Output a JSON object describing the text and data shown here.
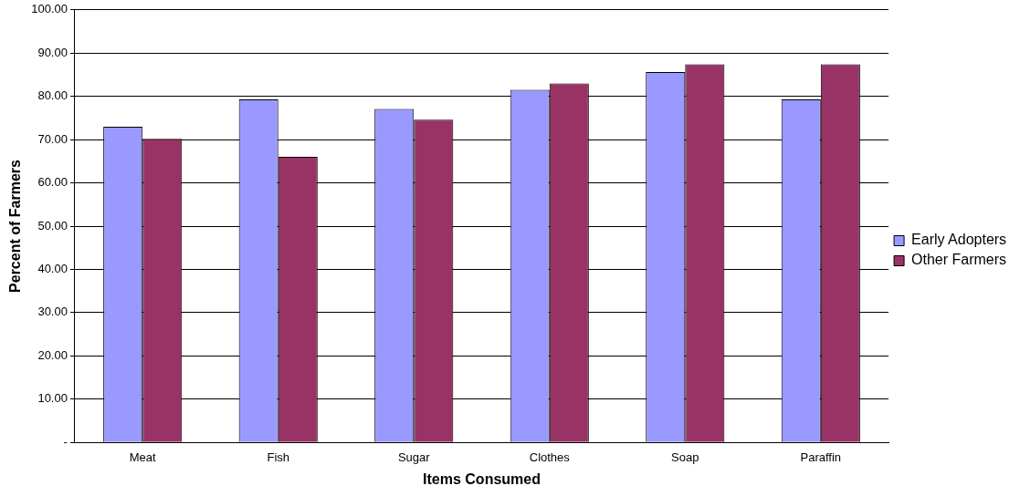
{
  "chart_data": {
    "type": "bar",
    "xlabel": "Items Consumed",
    "ylabel": "Percent of Farmers",
    "categories": [
      "Meat",
      "Fish",
      "Sugar",
      "Clothes",
      "Soap",
      "Paraffin"
    ],
    "series": [
      {
        "name": "Early Adopters",
        "color": "#9999ff",
        "values": [
          73.0,
          79.3,
          77.1,
          81.5,
          85.6,
          79.3
        ]
      },
      {
        "name": "Other Farmers",
        "color": "#993366",
        "values": [
          70.2,
          66.0,
          74.6,
          83.0,
          87.4,
          87.4
        ]
      }
    ],
    "ylim": [
      0,
      100
    ],
    "yticks": [
      {
        "value": 0,
        "label": "-"
      },
      {
        "value": 10,
        "label": "10.00"
      },
      {
        "value": 20,
        "label": "20.00"
      },
      {
        "value": 30,
        "label": "30.00"
      },
      {
        "value": 40,
        "label": "40.00"
      },
      {
        "value": 50,
        "label": "50.00"
      },
      {
        "value": 60,
        "label": "60.00"
      },
      {
        "value": 70,
        "label": "70.00"
      },
      {
        "value": 80,
        "label": "80.00"
      },
      {
        "value": 90,
        "label": "90.00"
      },
      {
        "value": 100,
        "label": "100.00"
      }
    ],
    "grid": "y",
    "legend": "right"
  }
}
